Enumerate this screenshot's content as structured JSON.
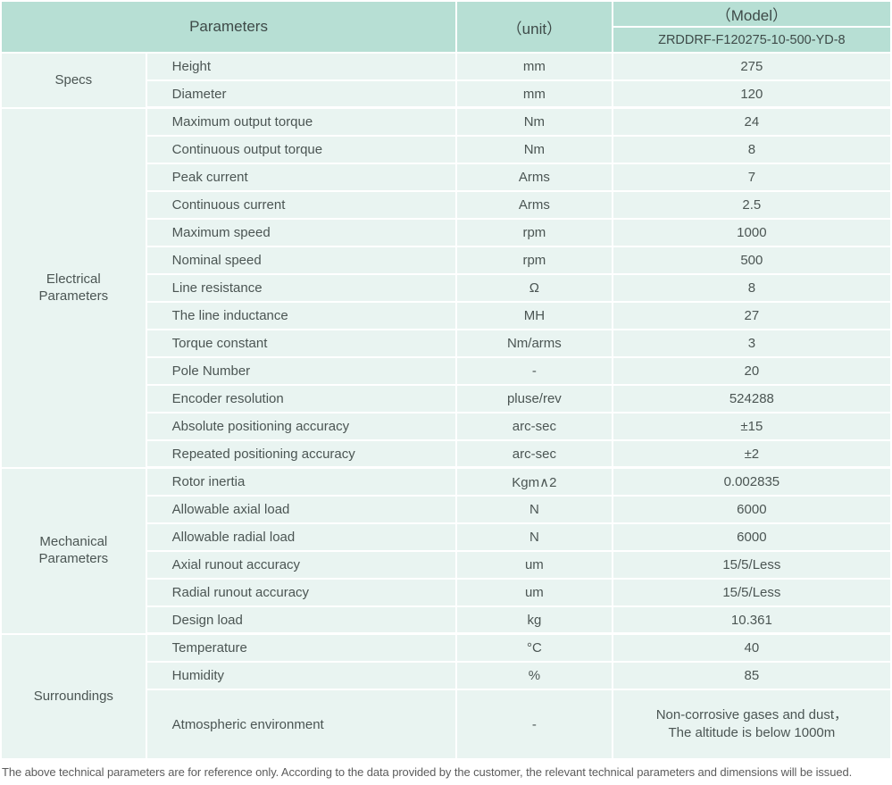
{
  "table": {
    "header": {
      "parameters": "Parameters",
      "unit": "（unit）",
      "model": "（Model）",
      "model_number": "ZRDDRF-F120275-10-500-YD-8"
    },
    "sections": [
      {
        "group": "Specs",
        "rows": [
          {
            "param": "Height",
            "unit": "mm",
            "value": "275"
          },
          {
            "param": "Diameter",
            "unit": "mm",
            "value": "120"
          }
        ]
      },
      {
        "group": "Electrical Parameters",
        "rows": [
          {
            "param": "Maximum output torque",
            "unit": "Nm",
            "value": "24"
          },
          {
            "param": "Continuous output torque",
            "unit": "Nm",
            "value": "8"
          },
          {
            "param": "Peak current",
            "unit": "Arms",
            "value": "7"
          },
          {
            "param": "Continuous current",
            "unit": "Arms",
            "value": "2.5"
          },
          {
            "param": "Maximum speed",
            "unit": "rpm",
            "value": "1000"
          },
          {
            "param": "Nominal speed",
            "unit": "rpm",
            "value": "500"
          },
          {
            "param": "Line resistance",
            "unit": "Ω",
            "value": "8"
          },
          {
            "param": "The line inductance",
            "unit": "MH",
            "value": "27"
          },
          {
            "param": "Torque constant",
            "unit": "Nm/arms",
            "value": "3"
          },
          {
            "param": "Pole Number",
            "unit": "-",
            "value": "20"
          },
          {
            "param": "Encoder resolution",
            "unit": "pluse/rev",
            "value": "524288"
          },
          {
            "param": "Absolute positioning accuracy",
            "unit": "arc-sec",
            "value": "±15"
          },
          {
            "param": "Repeated positioning accuracy",
            "unit": "arc-sec",
            "value": "±2"
          }
        ]
      },
      {
        "group": "Mechanical Parameters",
        "rows": [
          {
            "param": "Rotor inertia",
            "unit": "Kgm∧2",
            "value": "0.002835"
          },
          {
            "param": "Allowable axial load",
            "unit": "N",
            "value": "6000"
          },
          {
            "param": "Allowable radial load",
            "unit": "N",
            "value": "6000"
          },
          {
            "param": "Axial runout accuracy",
            "unit": "um",
            "value": "15/5/Less"
          },
          {
            "param": "Radial runout accuracy",
            "unit": "um",
            "value": "15/5/Less"
          },
          {
            "param": "Design load",
            "unit": "kg",
            "value": "10.361"
          }
        ]
      },
      {
        "group": "Surroundings",
        "rows": [
          {
            "param": "Temperature",
            "unit": "°C",
            "value": "40"
          },
          {
            "param": "Humidity",
            "unit": "%",
            "value": "85"
          },
          {
            "param": "Atmospheric environment",
            "unit": "-",
            "value_lines": [
              "Non-corrosive gases and dust，",
              "The altitude is below 1000m"
            ]
          }
        ]
      }
    ]
  },
  "footer": {
    "note": "The above technical parameters are for reference only. According to the data provided by the customer, the relevant technical parameters and dimensions will be issued."
  },
  "colors": {
    "header_bg": "#b7dfd4",
    "row_bg": "#e9f4f1",
    "divider": "#ffffff",
    "text": "#4b5553"
  }
}
